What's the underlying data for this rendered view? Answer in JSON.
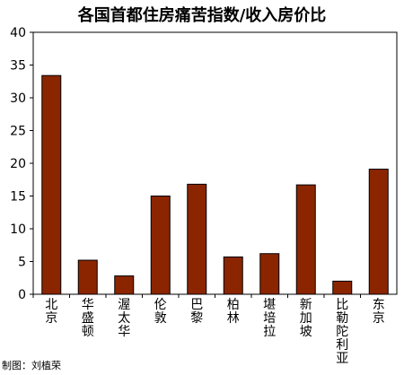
{
  "chart_data": {
    "type": "bar",
    "title": "各国首都住房痛苦指数/收入房价比",
    "categories": [
      "北京",
      "华盛顿",
      "渥太华",
      "伦敦",
      "巴黎",
      "柏林",
      "堪培拉",
      "新加坡",
      "比勒陀利亚",
      "东京"
    ],
    "values": [
      33.4,
      5.2,
      2.8,
      15.0,
      16.8,
      5.7,
      6.2,
      16.7,
      2.0,
      19.1
    ],
    "ylim": [
      0,
      40
    ],
    "yticks": [
      0,
      5,
      10,
      15,
      20,
      25,
      30,
      35,
      40
    ],
    "xlabel": "",
    "ylabel": "",
    "grid": false,
    "bar_color": "#8b2500"
  },
  "credit": "制图：刘植荣"
}
